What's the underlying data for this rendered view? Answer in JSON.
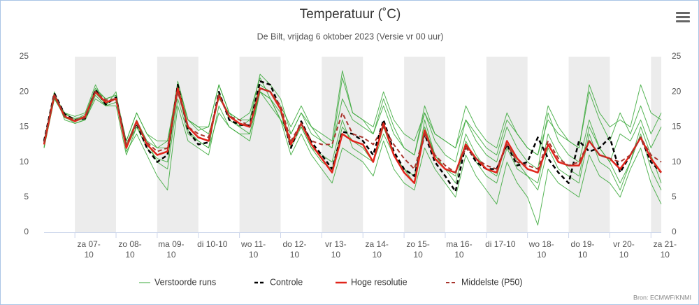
{
  "chart_data": {
    "type": "line",
    "title": "Temperatuur (˚C)",
    "subtitle": "De Bilt, vrijdag 6 oktober 2023 (Versie vr 00 uur)",
    "credit": "Bron: ECMWF/KNMI",
    "xlim": [
      6,
      366
    ],
    "xticks": [
      {
        "value": 24,
        "label": "za 07-10"
      },
      {
        "value": 48,
        "label": "zo 08-10"
      },
      {
        "value": 72,
        "label": "ma 09-10"
      },
      {
        "value": 96,
        "label": "di 10-10"
      },
      {
        "value": 120,
        "label": "wo 11-10"
      },
      {
        "value": 144,
        "label": "do 12-10"
      },
      {
        "value": 168,
        "label": "vr 13-10"
      },
      {
        "value": 192,
        "label": "za 14-10"
      },
      {
        "value": 216,
        "label": "zo 15-10"
      },
      {
        "value": 240,
        "label": "ma 16-10"
      },
      {
        "value": 264,
        "label": "di 17-10"
      },
      {
        "value": 288,
        "label": "wo 18-10"
      },
      {
        "value": 312,
        "label": "do 19-10"
      },
      {
        "value": 336,
        "label": "vr 20-10"
      },
      {
        "value": 360,
        "label": "za 21-10"
      }
    ],
    "ylim": [
      0,
      25
    ],
    "yticks": [
      0,
      5,
      10,
      15,
      20,
      25
    ],
    "y2lim": [
      0,
      25
    ],
    "y2ticks": [
      0,
      5,
      10,
      15,
      20,
      25
    ],
    "shade_alternate_days": true,
    "legend": "bottom",
    "x": [
      6,
      12,
      18,
      24,
      30,
      36,
      42,
      48,
      54,
      60,
      66,
      72,
      78,
      84,
      90,
      96,
      102,
      108,
      114,
      120,
      126,
      132,
      138,
      144,
      150,
      156,
      162,
      168,
      174,
      180,
      186,
      192,
      198,
      204,
      210,
      216,
      222,
      228,
      234,
      240,
      246,
      252,
      258,
      264,
      270,
      276,
      282,
      288,
      294,
      300,
      306,
      312,
      318,
      324,
      330,
      336,
      342,
      348,
      354,
      360,
      366
    ],
    "series": [
      {
        "name": "Verstoorde runs",
        "color": "#38a838",
        "line_width": 1,
        "dashed": false,
        "values": [
          [
            12,
            19,
            17,
            16.5,
            17,
            21,
            18,
            18.5,
            13,
            17,
            14,
            12,
            13,
            21,
            16,
            14.5,
            15,
            21,
            17,
            16,
            17,
            22,
            19,
            16,
            14,
            17,
            15,
            13,
            12,
            19,
            16,
            15,
            14,
            18,
            14,
            12,
            11,
            17,
            13,
            11,
            10,
            16,
            13,
            11,
            10,
            15,
            12,
            10,
            9,
            17,
            13,
            11,
            10,
            16,
            12,
            10,
            14,
            13,
            16,
            12,
            15
          ],
          [
            13,
            20,
            16,
            15.5,
            16,
            19.5,
            18,
            20,
            11.5,
            14,
            11,
            8,
            6,
            18,
            13,
            12,
            11,
            18,
            15,
            14,
            13,
            20,
            19,
            16,
            11,
            14,
            11,
            9,
            7,
            12,
            11,
            10,
            8,
            13,
            9,
            7,
            6,
            12,
            9,
            7,
            5,
            11,
            8,
            6,
            4,
            10,
            7,
            5,
            1,
            9,
            7,
            6,
            5,
            11,
            8,
            7,
            5,
            9,
            12,
            7,
            4
          ],
          [
            12.5,
            19.5,
            17,
            16,
            16.8,
            20.5,
            19,
            19.5,
            12.5,
            16,
            13,
            12,
            12,
            21.5,
            16,
            15,
            14,
            19,
            17,
            16,
            16,
            22.5,
            21,
            19,
            14,
            17,
            14,
            13,
            12,
            22,
            17,
            16,
            14,
            19,
            15,
            12,
            11,
            18,
            14,
            13,
            12,
            16,
            14,
            12,
            11,
            16,
            14,
            12,
            11,
            18,
            15,
            13,
            12,
            20,
            16,
            13,
            17,
            14,
            18,
            14,
            17
          ],
          [
            12,
            19,
            16.5,
            15.5,
            16,
            19,
            18,
            18,
            11,
            15,
            13,
            10,
            9,
            19,
            14,
            13,
            12,
            17,
            15,
            14,
            14,
            20,
            18,
            16,
            13,
            15,
            12,
            11,
            10,
            16,
            12,
            11,
            10,
            14,
            11,
            9,
            8,
            15,
            11,
            9,
            7,
            13,
            10,
            8,
            7,
            12,
            9,
            8,
            6,
            12,
            9,
            8,
            7,
            14,
            10,
            9,
            6,
            10,
            14,
            9,
            6
          ],
          [
            13,
            19.8,
            16.8,
            16.2,
            16.5,
            20.2,
            19,
            19.5,
            13,
            17,
            14,
            13,
            13,
            20,
            16,
            15,
            15,
            21,
            17,
            15,
            16,
            21,
            20,
            18,
            15,
            18,
            15,
            14,
            13,
            23,
            17,
            16,
            15,
            20,
            16,
            14,
            13,
            17,
            14,
            13,
            12,
            18,
            15,
            13,
            12,
            17,
            14,
            12,
            11,
            16,
            14,
            13,
            12,
            21,
            17,
            15,
            16,
            15,
            21,
            17,
            16
          ],
          [
            12.2,
            19.2,
            16.3,
            15.8,
            16.2,
            19.8,
            18.3,
            19,
            12,
            15,
            12,
            10.5,
            10,
            20,
            14.5,
            13,
            12,
            20,
            16,
            15,
            14,
            20,
            19,
            17,
            12,
            15,
            12,
            10,
            9,
            15,
            13,
            12,
            10,
            15,
            11,
            9,
            7,
            16,
            11,
            9,
            8,
            14,
            11,
            9,
            8,
            13,
            10,
            8,
            7,
            14,
            11,
            9,
            8,
            15,
            12,
            10,
            7,
            10,
            15,
            11,
            7
          ]
        ]
      },
      {
        "name": "Controle",
        "color": "#000000",
        "line_width": 2.5,
        "dashed": true,
        "values": [
          13,
          19.8,
          16.8,
          16,
          16.2,
          20.3,
          18.2,
          19.2,
          12.3,
          15.5,
          12,
          10,
          11,
          21,
          14.5,
          12.5,
          12.8,
          20,
          16,
          15.3,
          15.2,
          21.5,
          21,
          17.5,
          12,
          15.8,
          12.8,
          11,
          9,
          14.3,
          14,
          13,
          11,
          16,
          11.5,
          9,
          8,
          14,
          10,
          8,
          5.8,
          12.5,
          10,
          9,
          9,
          12.5,
          9.5,
          10,
          13.5,
          10.5,
          8.5,
          7,
          13,
          11.5,
          12,
          13.5,
          8.5,
          11,
          13.5,
          10,
          8.5
        ]
      },
      {
        "name": "Hoge resolutie",
        "color": "#e0251b",
        "line_width": 2.5,
        "dashed": false,
        "values": [
          12.5,
          19.5,
          16.5,
          15.8,
          16.5,
          20,
          18.5,
          19,
          12,
          15.8,
          12.5,
          11,
          11.5,
          20.5,
          15,
          13.5,
          13,
          19.5,
          16.5,
          15.5,
          15,
          20.5,
          20,
          17.5,
          12.5,
          15.5,
          12.5,
          10.5,
          8.5,
          14,
          13,
          12.5,
          10,
          15.5,
          11,
          8.5,
          7,
          14.5,
          10.5,
          9,
          8.5,
          12.5,
          10.5,
          9,
          8.5,
          13,
          10.5,
          9,
          8.5,
          12.5,
          10,
          9.5,
          9.5,
          13,
          11,
          10.5,
          9,
          11,
          13.5,
          10.5,
          8.5
        ]
      },
      {
        "name": "Middelste (P50)",
        "color": "#a8352d",
        "line_width": 2,
        "dashed": true,
        "values": [
          12.8,
          19.6,
          16.6,
          16,
          16.3,
          20,
          18.8,
          19,
          12.5,
          15.5,
          12.8,
          11.5,
          12,
          20,
          15,
          14,
          13.5,
          19.5,
          16.5,
          16,
          15,
          20.5,
          20,
          18,
          13,
          15.5,
          13,
          12.5,
          12.5,
          17,
          14,
          13.5,
          12.5,
          15,
          12.5,
          10.5,
          9,
          14,
          11,
          9.5,
          8.5,
          12,
          10.5,
          9.5,
          9,
          12.5,
          10,
          9.5,
          9,
          13,
          10.5,
          9.5,
          10,
          13,
          11,
          10.5,
          10,
          11,
          13.5,
          11,
          10
        ]
      }
    ]
  }
}
